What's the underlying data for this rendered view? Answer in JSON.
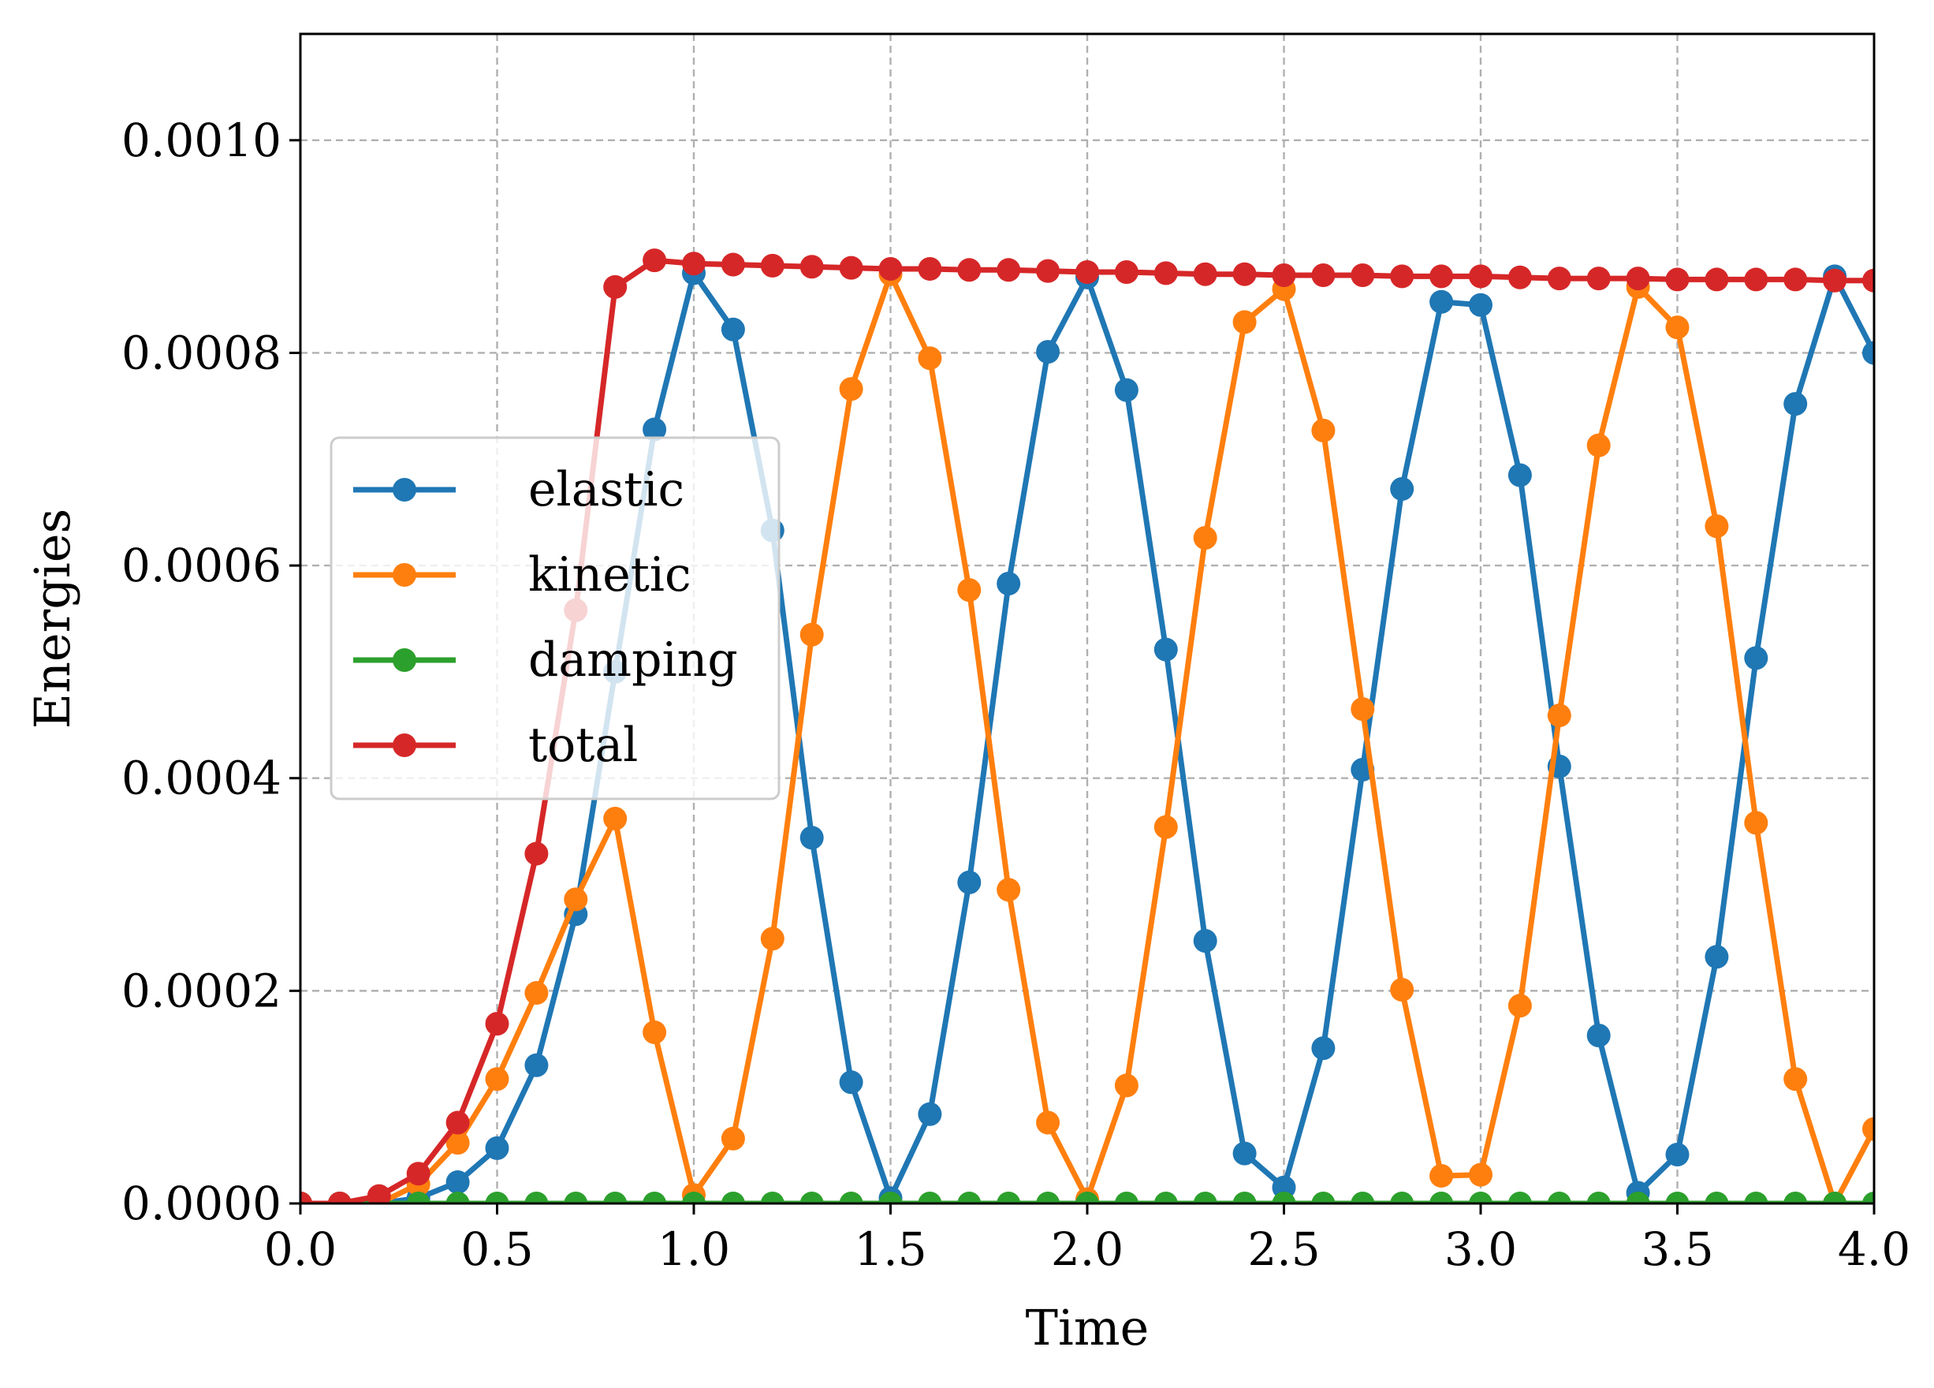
{
  "chart_data": {
    "type": "line",
    "title": "",
    "xlabel": "Time",
    "ylabel": "Energies",
    "xlim": [
      0.0,
      4.0
    ],
    "ylim": [
      0.0,
      0.0011
    ],
    "xticks": [
      0.0,
      0.5,
      1.0,
      1.5,
      2.0,
      2.5,
      3.0,
      3.5,
      4.0
    ],
    "xtick_labels": [
      "0.0",
      "0.5",
      "1.0",
      "1.5",
      "2.0",
      "2.5",
      "3.0",
      "3.5",
      "4.0"
    ],
    "yticks": [
      0.0,
      0.0002,
      0.0004,
      0.0006,
      0.0008,
      0.001
    ],
    "ytick_labels": [
      "0.0000",
      "0.0002",
      "0.0004",
      "0.0006",
      "0.0008",
      "0.0010"
    ],
    "grid": true,
    "legend_position": "center-left",
    "x": [
      0.0,
      0.1,
      0.2,
      0.3,
      0.4,
      0.5,
      0.6,
      0.7,
      0.8,
      0.9,
      1.0,
      1.1,
      1.2,
      1.3,
      1.4,
      1.5,
      1.6,
      1.7,
      1.8,
      1.9,
      2.0,
      2.1,
      2.2,
      2.3,
      2.4,
      2.5,
      2.6,
      2.7,
      2.8,
      2.9,
      3.0,
      3.1,
      3.2,
      3.3,
      3.4,
      3.5,
      3.6,
      3.7,
      3.8,
      3.9,
      4.0
    ],
    "series": [
      {
        "name": "elastic",
        "color": "#1f77b4",
        "values": [
          0.0,
          0.0,
          0.0,
          5e-06,
          2e-05,
          5.2e-05,
          0.00013,
          0.000272,
          0.0005,
          0.000728,
          0.000875,
          0.000822,
          0.000633,
          0.000344,
          0.000114,
          5e-06,
          8.4e-05,
          0.000302,
          0.000583,
          0.000801,
          0.000871,
          0.000765,
          0.000521,
          0.000247,
          4.7e-05,
          1.5e-05,
          0.000146,
          0.000408,
          0.000672,
          0.000848,
          0.000845,
          0.000685,
          0.000411,
          0.000158,
          1e-05,
          4.6e-05,
          0.000232,
          0.000513,
          0.000752,
          0.000872,
          0.0008
        ]
      },
      {
        "name": "kinetic",
        "color": "#ff7f0e",
        "values": [
          0.0,
          0.0,
          0.0,
          1.8e-05,
          5.7e-05,
          0.000117,
          0.000198,
          0.000286,
          0.000362,
          0.000161,
          8e-06,
          6.1e-05,
          0.000249,
          0.000535,
          0.000766,
          0.000874,
          0.000795,
          0.000577,
          0.000295,
          7.6e-05,
          4e-06,
          0.000111,
          0.000354,
          0.000626,
          0.000829,
          0.00086,
          0.000727,
          0.000465,
          0.000201,
          2.6e-05,
          2.7e-05,
          0.000186,
          0.000459,
          0.000713,
          0.000862,
          0.000824,
          0.000637,
          0.000358,
          0.000117,
          0.0,
          7e-05
        ]
      },
      {
        "name": "damping",
        "color": "#2ca02c",
        "values": [
          0.0,
          0.0,
          0.0,
          0.0,
          0.0,
          0.0,
          0.0,
          0.0,
          0.0,
          0.0,
          0.0,
          0.0,
          0.0,
          0.0,
          0.0,
          0.0,
          0.0,
          0.0,
          0.0,
          0.0,
          0.0,
          0.0,
          0.0,
          0.0,
          0.0,
          0.0,
          0.0,
          0.0,
          0.0,
          0.0,
          0.0,
          0.0,
          0.0,
          0.0,
          0.0,
          0.0,
          0.0,
          0.0,
          0.0,
          0.0,
          0.0
        ]
      },
      {
        "name": "total",
        "color": "#d62728",
        "values": [
          0.0,
          0.0,
          7e-06,
          2.8e-05,
          7.6e-05,
          0.000169,
          0.000329,
          0.000558,
          0.000862,
          0.000887,
          0.000884,
          0.000883,
          0.000882,
          0.000881,
          0.00088,
          0.000879,
          0.000879,
          0.000878,
          0.000878,
          0.000877,
          0.000876,
          0.000876,
          0.000875,
          0.000874,
          0.000874,
          0.000873,
          0.000873,
          0.000873,
          0.000872,
          0.000872,
          0.000872,
          0.000871,
          0.00087,
          0.00087,
          0.00087,
          0.000869,
          0.000869,
          0.000869,
          0.000869,
          0.000868,
          0.000868
        ]
      }
    ]
  }
}
